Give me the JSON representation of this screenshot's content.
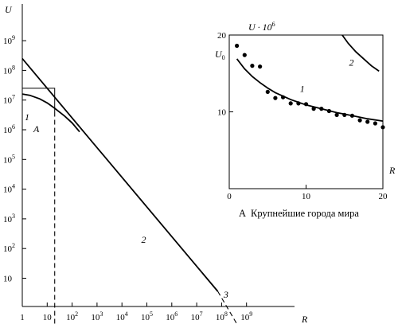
{
  "chart_data": [
    {
      "type": "line",
      "ylabel": "U",
      "xlabel": "R",
      "x_scale": "log",
      "y_scale": "log",
      "xlim": [
        1,
        3000000000
      ],
      "ylim": [
        0.1,
        100000000000
      ],
      "x_ticks": [
        {
          "v": 1,
          "b": "1",
          "e": ""
        },
        {
          "v": 10,
          "b": "10",
          "e": ""
        },
        {
          "v": 100,
          "b": "10",
          "e": "2"
        },
        {
          "v": 1000,
          "b": "10",
          "e": "3"
        },
        {
          "v": 10000,
          "b": "10",
          "e": "4"
        },
        {
          "v": 100000,
          "b": "10",
          "e": "5"
        },
        {
          "v": 1000000,
          "b": "10",
          "e": "6"
        },
        {
          "v": 10000000,
          "b": "10",
          "e": "7"
        },
        {
          "v": 100000000,
          "b": "10",
          "e": "8"
        },
        {
          "v": 1000000000,
          "b": "10",
          "e": "9"
        }
      ],
      "y_ticks": [
        {
          "v": 10,
          "b": "10",
          "e": ""
        },
        {
          "v": 100,
          "b": "10",
          "e": "2"
        },
        {
          "v": 1000,
          "b": "10",
          "e": "3"
        },
        {
          "v": 10000,
          "b": "10",
          "e": "4"
        },
        {
          "v": 100000,
          "b": "10",
          "e": "5"
        },
        {
          "v": 1000000,
          "b": "10",
          "e": "6"
        },
        {
          "v": 10000000,
          "b": "10",
          "e": "7"
        },
        {
          "v": 100000000,
          "b": "10",
          "e": "8"
        },
        {
          "v": 1000000000,
          "b": "10",
          "e": "9"
        }
      ],
      "series": [
        {
          "label": "1",
          "style": "solid",
          "x": [
            1,
            2,
            5,
            10,
            20,
            50,
            100,
            200
          ],
          "y": [
            16000000,
            14500000,
            11000000,
            8000000,
            5300000,
            2900000,
            1700000,
            850000
          ]
        },
        {
          "label": "2",
          "style": "solid",
          "x": [
            1,
            100,
            70000000
          ],
          "y": [
            250000000,
            2500000,
            3.6
          ]
        },
        {
          "label": "3",
          "style": "dashed",
          "x": [
            70000000,
            400000000
          ],
          "y": [
            3.6,
            0.3
          ]
        }
      ],
      "inset_box": {
        "x": [
          1,
          20
        ],
        "y": [
          0.1,
          25000000
        ]
      },
      "region_label": "A"
    },
    {
      "type": "line",
      "ylabel": "U · 10^6",
      "ylabel_main": "U · 10",
      "ylabel_exp": "6",
      "y0_label": "U",
      "y0_label_sub": "0",
      "xlabel": "R",
      "xlim": [
        0,
        20
      ],
      "ylim": [
        0,
        20
      ],
      "x_ticks": [
        0,
        10,
        20
      ],
      "y_ticks": [
        10,
        20
      ],
      "caption_letter": "A",
      "caption": "Крупнейшие города мира",
      "series": [
        {
          "label": "1",
          "style": "solid",
          "x": [
            1,
            2,
            3,
            4,
            5,
            6,
            8,
            10,
            12,
            14,
            16,
            18,
            20
          ],
          "y": [
            16.9,
            15.6,
            14.6,
            13.8,
            13.1,
            12.5,
            11.6,
            10.9,
            10.4,
            9.9,
            9.5,
            9.1,
            8.8
          ]
        },
        {
          "label": "2",
          "style": "solid",
          "x": [
            14.7,
            15.5,
            16.5,
            17.5,
            18.5,
            19.5
          ],
          "y": [
            20,
            18.9,
            17.8,
            16.9,
            16.0,
            15.3
          ]
        },
        {
          "label": "",
          "style": "points",
          "x": [
            1,
            2,
            3,
            4,
            5,
            6,
            7,
            8,
            9,
            10,
            11,
            12,
            13,
            14,
            15,
            16,
            17,
            18,
            19,
            20
          ],
          "y": [
            18.6,
            17.4,
            16.0,
            15.9,
            12.6,
            11.8,
            11.9,
            11.1,
            11.1,
            11.0,
            10.4,
            10.4,
            10.1,
            9.6,
            9.6,
            9.5,
            8.9,
            8.7,
            8.5,
            8.0
          ]
        }
      ]
    }
  ]
}
